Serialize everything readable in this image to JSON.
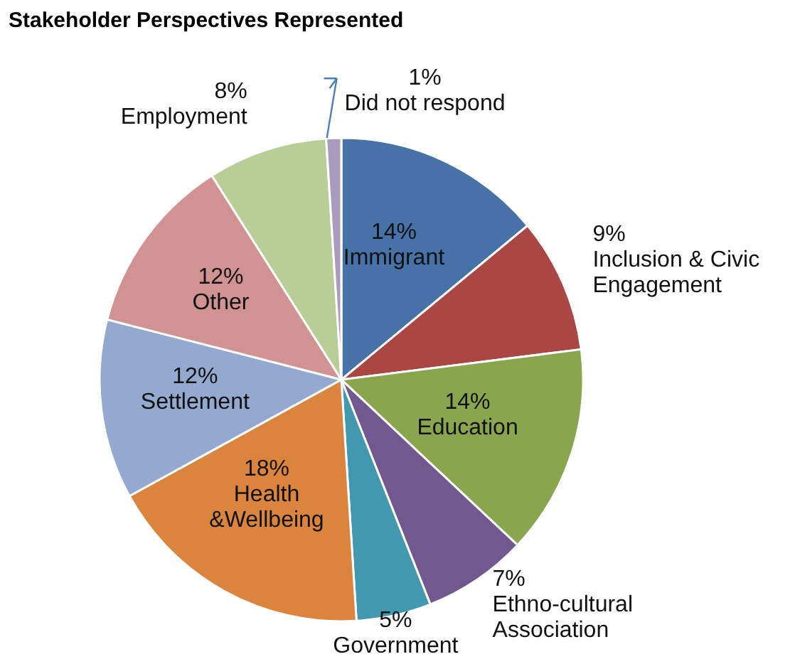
{
  "chart_data": {
    "type": "pie",
    "title": "Stakeholder Perspectives Represented",
    "categories": [
      "Immigrant",
      "Inclusion & Civic Engagement",
      "Education",
      "Ethno-cultural Association",
      "Government",
      "Health &Wellbeing",
      "Settlement",
      "Other",
      "Employment",
      "Did not respond"
    ],
    "values": [
      14,
      9,
      14,
      7,
      5,
      18,
      12,
      12,
      8,
      1
    ],
    "value_labels": [
      "14%",
      "9%",
      "14%",
      "7%",
      "5%",
      "18%",
      "12%",
      "12%",
      "8%",
      "1%"
    ],
    "colors": [
      "#4672a8",
      "#aa4643",
      "#89a54e",
      "#71588f",
      "#4198af",
      "#db843d",
      "#93a9cf",
      "#d19392",
      "#b9cd96",
      "#a99bbd"
    ]
  }
}
